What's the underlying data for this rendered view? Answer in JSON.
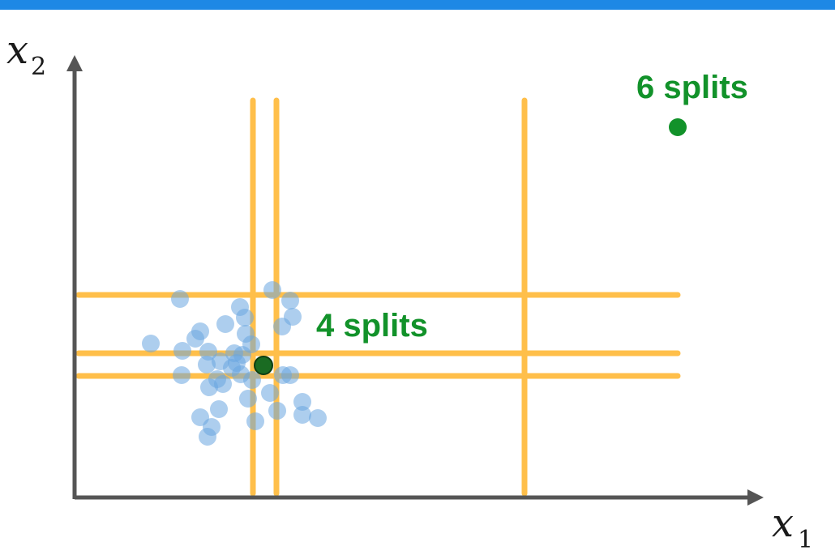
{
  "axes": {
    "x": {
      "var": "x",
      "sub": "1"
    },
    "y": {
      "var": "x",
      "sub": "2"
    }
  },
  "labels": {
    "outlier_label": "6 splits",
    "inlier_label": "4 splits"
  },
  "colors": {
    "top_bar": "#1e88e5",
    "axis": "#555555",
    "split_line": "#ffbf4a",
    "cluster_point": "#6aa6e0",
    "highlight_point": "#1a6b22",
    "outlier_point": "#12922a",
    "label_text": "#12922a"
  }
}
